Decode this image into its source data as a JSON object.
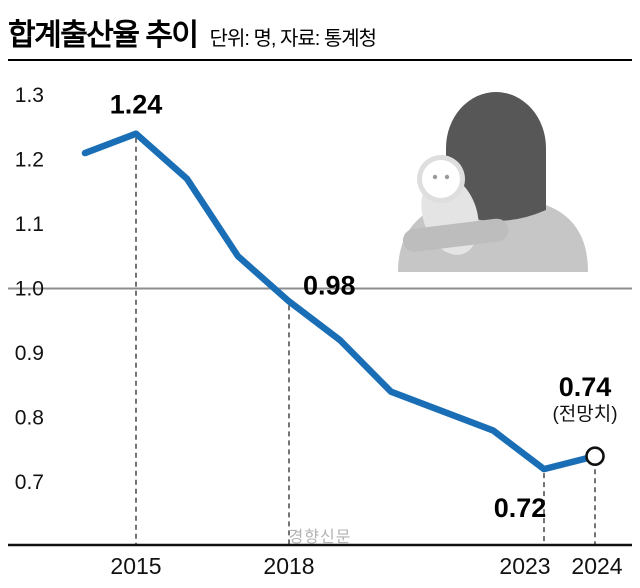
{
  "header": {
    "title": "합계출산율 추이",
    "subtitle": "단위: 명, 자료: 통계청"
  },
  "watermark": "경향신문",
  "chart_data": {
    "type": "line",
    "title": "합계출산율 추이",
    "unit_source": "단위: 명, 자료: 통계청",
    "x": [
      2014,
      2015,
      2016,
      2017,
      2018,
      2019,
      2020,
      2021,
      2022,
      2023,
      2024
    ],
    "values": [
      1.21,
      1.24,
      1.17,
      1.05,
      0.98,
      0.92,
      0.84,
      0.81,
      0.78,
      0.72,
      0.74
    ],
    "ylim": [
      0.7,
      1.3
    ],
    "yticks": [
      1.3,
      1.2,
      1.1,
      1.0,
      0.9,
      0.8,
      0.7
    ],
    "xtick_years": [
      2015,
      2018,
      2023,
      2024
    ],
    "xtick_labels": [
      "2015",
      "2018",
      "2023",
      "2024"
    ],
    "reference_line": 1.0,
    "grid": "reference line at 1.0 only",
    "legend": "none",
    "line_color": "#1a6eb5",
    "annotations": [
      {
        "year": 2015,
        "value": 1.24,
        "label": "1.24"
      },
      {
        "year": 2018,
        "value": 0.98,
        "label": "0.98"
      },
      {
        "year": 2023,
        "value": 0.72,
        "label": "0.72"
      },
      {
        "year": 2024,
        "value": 0.74,
        "label": "0.74",
        "sub": "(전망치)",
        "forecast": true
      }
    ],
    "dashed_guide_years": [
      2015,
      2018,
      2023,
      2024
    ],
    "forecast_marker": {
      "year": 2024,
      "value": 0.74
    }
  }
}
